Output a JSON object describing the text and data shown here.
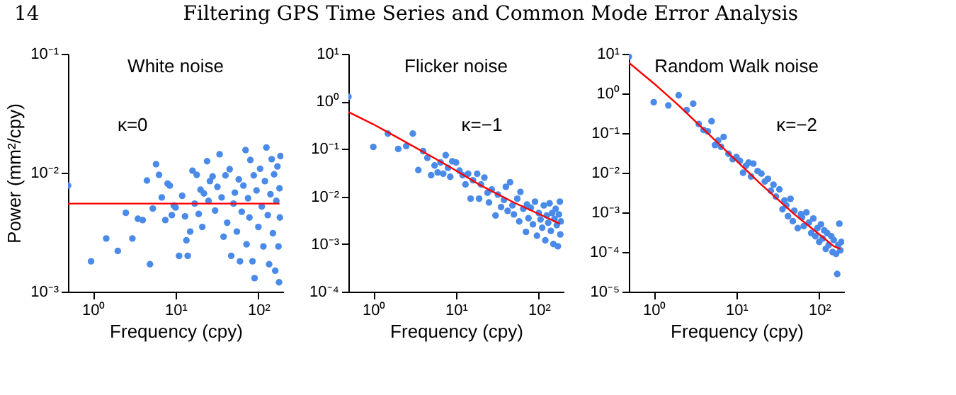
{
  "chart_data": [
    {
      "type": "other",
      "title": "Filtering GPS Time Series and Common Mode Error Analysis",
      "annotations": [
        "14"
      ]
    },
    {
      "type": "scatter",
      "title": "White noise",
      "xlabel": "Frequency (cpy)",
      "ylabel": "Power (mm²/cpy)",
      "annotations": [
        "κ=0"
      ],
      "log": "xy",
      "xlim": [
        0.5,
        200
      ],
      "ylim": [
        0.001,
        0.1
      ],
      "xticks": [
        {
          "value": 1,
          "label": "10⁰"
        },
        {
          "value": 10,
          "label": "10¹"
        },
        {
          "value": 100,
          "label": "10²"
        }
      ],
      "yticks": [
        {
          "value": 0.001,
          "label": "10⁻³"
        },
        {
          "value": 0.01,
          "label": "10⁻²"
        },
        {
          "value": 0.1,
          "label": "10⁻¹"
        }
      ],
      "series": [
        {
          "type": "scatter",
          "color": "#4a8ae8",
          "x": [
            0.5,
            0.95,
            1.45,
            2,
            2.5,
            3,
            3.5,
            4,
            4.5,
            4.9,
            5.3,
            5.8,
            6.3,
            6.8,
            7.5,
            8,
            8.5,
            9,
            9.5,
            10,
            11,
            12,
            13,
            13.5,
            14,
            15,
            16,
            17,
            18,
            19,
            20,
            21,
            22,
            24,
            25,
            26,
            28,
            30,
            32,
            34,
            36,
            38,
            40,
            42,
            45,
            47,
            50,
            52,
            55,
            58,
            60,
            63,
            66,
            70,
            72,
            75,
            78,
            80,
            85,
            88,
            90,
            95,
            100,
            105,
            110,
            115,
            120,
            125,
            130,
            135,
            140,
            145,
            150,
            155,
            160,
            165,
            170,
            175,
            178,
            180,
            182,
            185
          ],
          "values": [
            0.0078,
            0.0018,
            0.0028,
            0.0022,
            0.0046,
            0.0028,
            0.0041,
            0.004,
            0.0086,
            0.0017,
            0.005,
            0.0118,
            0.0096,
            0.0062,
            0.004,
            0.0081,
            0.0078,
            0.0044,
            0.0053,
            0.0051,
            0.002,
            0.0064,
            0.0043,
            0.0027,
            0.002,
            0.0032,
            0.0104,
            0.0055,
            0.0096,
            0.0045,
            0.0072,
            0.0035,
            0.0067,
            0.0125,
            0.0058,
            0.0085,
            0.0093,
            0.0048,
            0.0076,
            0.0143,
            0.0062,
            0.0029,
            0.0095,
            0.0038,
            0.0107,
            0.002,
            0.0055,
            0.0068,
            0.0032,
            0.0088,
            0.0018,
            0.0047,
            0.0078,
            0.0155,
            0.0025,
            0.0061,
            0.0042,
            0.0128,
            0.0018,
            0.0095,
            0.0013,
            0.0071,
            0.0035,
            0.0108,
            0.0052,
            0.0024,
            0.0085,
            0.0163,
            0.0044,
            0.0017,
            0.0066,
            0.013,
            0.0031,
            0.0097,
            0.0015,
            0.0058,
            0.0113,
            0.0024,
            0.0012,
            0.0074,
            0.0042,
            0.0138
          ]
        },
        {
          "type": "line",
          "color": "#ff0000",
          "x": [
            0.5,
            180
          ],
          "values": [
            0.0055,
            0.0055
          ]
        }
      ]
    },
    {
      "type": "scatter",
      "title": "Flicker noise",
      "xlabel": "Frequency (cpy)",
      "annotations": [
        "κ=−1"
      ],
      "log": "xy",
      "xlim": [
        0.5,
        200
      ],
      "ylim": [
        0.0001,
        10
      ],
      "xticks": [
        {
          "value": 1,
          "label": "10⁰"
        },
        {
          "value": 10,
          "label": "10¹"
        },
        {
          "value": 100,
          "label": "10²"
        }
      ],
      "yticks": [
        {
          "value": 0.0001,
          "label": "10⁻⁴"
        },
        {
          "value": 0.001,
          "label": "10⁻³"
        },
        {
          "value": 0.01,
          "label": "10⁻²"
        },
        {
          "value": 0.1,
          "label": "10⁻¹"
        },
        {
          "value": 1,
          "label": "10⁰"
        },
        {
          "value": 10,
          "label": "10¹"
        }
      ],
      "series": [
        {
          "type": "scatter",
          "color": "#4a8ae8",
          "x": [
            0.5,
            1,
            1.5,
            2,
            2.5,
            3,
            3.5,
            4,
            4.5,
            5,
            5.5,
            6,
            6.5,
            7,
            7.5,
            8,
            8.5,
            9,
            10,
            11,
            12,
            13,
            14,
            15,
            16,
            18,
            19,
            20,
            22,
            24,
            25,
            27,
            30,
            32,
            35,
            38,
            40,
            42,
            45,
            48,
            50,
            55,
            58,
            60,
            65,
            70,
            72,
            75,
            80,
            85,
            90,
            95,
            100,
            105,
            110,
            115,
            120,
            125,
            130,
            135,
            140,
            145,
            150,
            155,
            160,
            165,
            170,
            175,
            180,
            182,
            185
          ],
          "values": [
            1.25,
            0.11,
            0.21,
            0.1,
            0.115,
            0.21,
            0.036,
            0.09,
            0.065,
            0.028,
            0.045,
            0.032,
            0.052,
            0.03,
            0.074,
            0.04,
            0.026,
            0.055,
            0.052,
            0.035,
            0.028,
            0.018,
            0.03,
            0.009,
            0.022,
            0.03,
            0.009,
            0.018,
            0.025,
            0.012,
            0.0075,
            0.014,
            0.004,
            0.011,
            0.006,
            0.0085,
            0.016,
            0.005,
            0.02,
            0.0065,
            0.0042,
            0.009,
            0.003,
            0.0125,
            0.0055,
            0.0018,
            0.0068,
            0.0035,
            0.0058,
            0.0026,
            0.0078,
            0.0015,
            0.0045,
            0.0033,
            0.0022,
            0.0065,
            0.0012,
            0.004,
            0.0028,
            0.0072,
            0.0019,
            0.0045,
            0.001,
            0.0034,
            0.0055,
            0.0025,
            0.0009,
            0.0042,
            0.0078,
            0.0016,
            0.003
          ]
        },
        {
          "type": "line",
          "color": "#ff0000",
          "x": [
            0.5,
            1,
            2,
            5,
            10,
            20,
            50,
            100,
            150,
            180
          ],
          "values": [
            0.6,
            0.33,
            0.17,
            0.07,
            0.035,
            0.017,
            0.0075,
            0.0043,
            0.0031,
            0.0027
          ]
        }
      ]
    },
    {
      "type": "scatter",
      "title": "Random Walk noise",
      "xlabel": "Frequency (cpy)",
      "annotations": [
        "κ=−2"
      ],
      "log": "xy",
      "xlim": [
        0.5,
        200
      ],
      "ylim": [
        1e-05,
        10
      ],
      "xticks": [
        {
          "value": 1,
          "label": "10⁰"
        },
        {
          "value": 10,
          "label": "10¹"
        },
        {
          "value": 100,
          "label": "10²"
        }
      ],
      "yticks": [
        {
          "value": 1e-05,
          "label": "10⁻⁵"
        },
        {
          "value": 0.0001,
          "label": "10⁻⁴"
        },
        {
          "value": 0.001,
          "label": "10⁻³"
        },
        {
          "value": 0.01,
          "label": "10⁻²"
        },
        {
          "value": 0.1,
          "label": "10⁻¹"
        },
        {
          "value": 1,
          "label": "10⁰"
        },
        {
          "value": 10,
          "label": "10¹"
        }
      ],
      "series": [
        {
          "type": "scatter",
          "color": "#4a8ae8",
          "x": [
            0.5,
            1,
            1.5,
            2,
            2.5,
            3,
            3.5,
            4,
            4.5,
            5,
            5.5,
            6,
            6.5,
            7,
            8,
            9,
            10,
            11,
            12,
            13,
            14,
            15,
            16,
            18,
            20,
            22,
            24,
            26,
            28,
            30,
            33,
            36,
            38,
            40,
            42,
            45,
            48,
            50,
            55,
            60,
            62,
            65,
            70,
            75,
            80,
            85,
            90,
            95,
            100,
            105,
            110,
            115,
            120,
            125,
            130,
            140,
            145,
            150,
            160,
            165,
            170,
            175,
            180,
            185
          ],
          "values": [
            8.5,
            0.6,
            0.5,
            0.9,
            0.38,
            0.55,
            0.17,
            0.12,
            0.11,
            0.2,
            0.05,
            0.065,
            0.045,
            0.08,
            0.03,
            0.022,
            0.025,
            0.02,
            0.01,
            0.015,
            0.018,
            0.008,
            0.017,
            0.011,
            0.0095,
            0.006,
            0.007,
            0.0035,
            0.005,
            0.0025,
            0.0038,
            0.0012,
            0.002,
            0.0015,
            0.0008,
            0.0022,
            0.0006,
            0.0011,
            0.0004,
            0.0009,
            0.00075,
            0.00045,
            0.001,
            0.00055,
            0.0003,
            0.0007,
            0.00025,
            0.0004,
            0.00018,
            0.0005,
            0.00022,
            0.00035,
            0.00012,
            0.0003,
            0.00015,
            0.00025,
            0.0001,
            0.0002,
            9e-05,
            2.8e-05,
            0.00015,
            0.00052,
            0.00011,
            0.00018
          ]
        },
        {
          "type": "line",
          "color": "#ff0000",
          "x": [
            0.5,
            1,
            2,
            5,
            10,
            20,
            50,
            100,
            150,
            180
          ],
          "values": [
            6,
            1.8,
            0.5,
            0.08,
            0.02,
            0.005,
            0.0009,
            0.00028,
            0.00014,
            0.00012
          ]
        }
      ]
    }
  ]
}
